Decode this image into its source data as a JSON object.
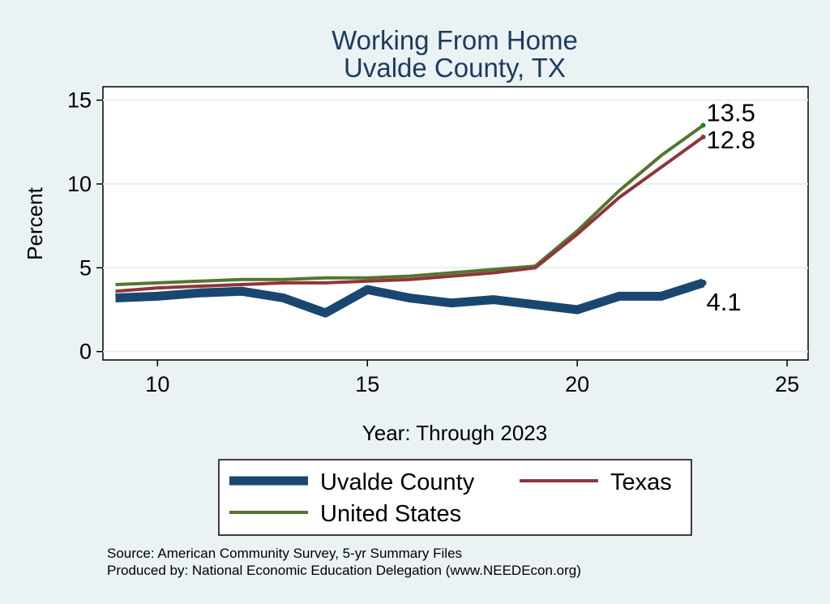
{
  "chart_data": {
    "type": "line",
    "title": [
      "Working From Home",
      "Uvalde County, TX"
    ],
    "xlabel": "Year: Through 2023",
    "ylabel": "Percent",
    "xlim": [
      8.7,
      25.5
    ],
    "ylim": [
      -0.5,
      15.8
    ],
    "xticks": [
      10,
      15,
      20,
      25
    ],
    "yticks": [
      0,
      5,
      10,
      15
    ],
    "grid": "horizontal",
    "legend_position": "bottom",
    "x": [
      9,
      10,
      11,
      12,
      13,
      14,
      15,
      16,
      17,
      18,
      19,
      20,
      21,
      22,
      23
    ],
    "series": [
      {
        "name": "Uvalde County",
        "color": "#1a476f",
        "values": [
          3.2,
          3.3,
          3.5,
          3.6,
          3.2,
          2.3,
          3.7,
          3.2,
          2.9,
          3.1,
          2.8,
          2.5,
          3.3,
          3.3,
          4.1
        ],
        "end_label": "4.1"
      },
      {
        "name": "Texas",
        "color": "#90353b",
        "values": [
          3.6,
          3.8,
          3.9,
          4.0,
          4.1,
          4.1,
          4.2,
          4.3,
          4.5,
          4.7,
          5.0,
          7.0,
          9.2,
          11.0,
          12.8
        ],
        "end_label": "12.8"
      },
      {
        "name": "United States",
        "color": "#55752f",
        "values": [
          4.0,
          4.1,
          4.2,
          4.3,
          4.3,
          4.4,
          4.4,
          4.5,
          4.7,
          4.9,
          5.1,
          7.2,
          9.6,
          11.7,
          13.5
        ],
        "end_label": "13.5"
      }
    ],
    "source_lines": [
      "Source: American Community Survey, 5-yr Summary Files",
      "Produced by: National Economic Education Delegation (www.NEEDEcon.org)"
    ]
  }
}
